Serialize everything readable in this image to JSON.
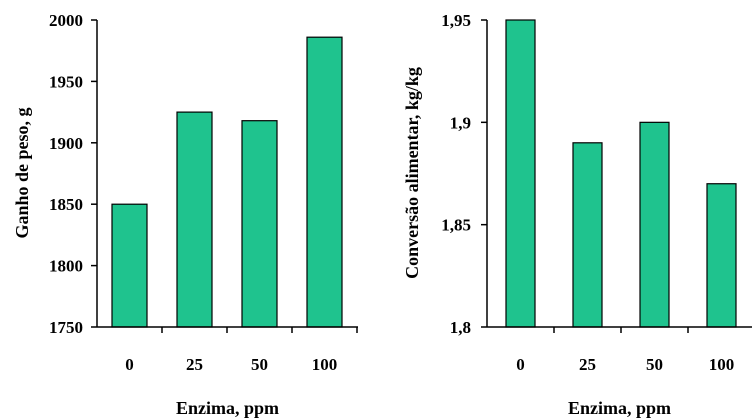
{
  "chart_data": [
    {
      "type": "bar",
      "categories": [
        "0",
        "25",
        "50",
        "100"
      ],
      "values": [
        1850,
        1925,
        1918,
        1986
      ],
      "xlabel": "Enzima, ppm",
      "ylabel": "Ganho de peso, g",
      "ylim": [
        1750,
        2000
      ],
      "yticks": [
        "1750",
        "1800",
        "1850",
        "1900",
        "1950",
        "2000"
      ],
      "grid": false,
      "bar_color": "#1fc38e",
      "bar_edge_color": "#000000"
    },
    {
      "type": "bar",
      "categories": [
        "0",
        "25",
        "50",
        "100"
      ],
      "values": [
        1.95,
        1.89,
        1.9,
        1.87
      ],
      "xlabel": "Enzima, ppm",
      "ylabel": "Conversão alimentar, kg/kg",
      "ylim": [
        1.8,
        1.95
      ],
      "yticks": [
        "1,8",
        "1,85",
        "1,9",
        "1,95"
      ],
      "grid": false,
      "bar_color": "#1fc38e",
      "bar_edge_color": "#000000"
    }
  ]
}
